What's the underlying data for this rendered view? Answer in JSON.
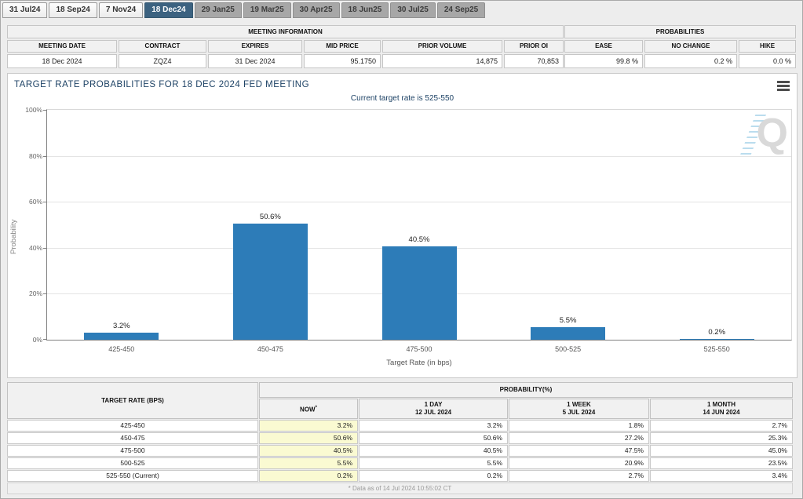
{
  "tabs": [
    {
      "label": "31 Jul24",
      "variant": "light"
    },
    {
      "label": "18 Sep24",
      "variant": "light"
    },
    {
      "label": "7 Nov24",
      "variant": "light"
    },
    {
      "label": "18 Dec24",
      "variant": "selected"
    },
    {
      "label": "29 Jan25",
      "variant": "gray"
    },
    {
      "label": "19 Mar25",
      "variant": "gray"
    },
    {
      "label": "30 Apr25",
      "variant": "gray"
    },
    {
      "label": "18 Jun25",
      "variant": "gray"
    },
    {
      "label": "30 Jul25",
      "variant": "gray"
    },
    {
      "label": "24 Sep25",
      "variant": "gray"
    }
  ],
  "meeting_info": {
    "title": "MEETING INFORMATION",
    "columns": [
      {
        "label": "MEETING DATE",
        "value": "18 Dec 2024",
        "align": "center"
      },
      {
        "label": "CONTRACT",
        "value": "ZQZ4",
        "align": "center"
      },
      {
        "label": "EXPIRES",
        "value": "31 Dec 2024",
        "align": "center"
      },
      {
        "label": "MID PRICE",
        "value": "95.1750",
        "align": "right"
      },
      {
        "label": "PRIOR VOLUME",
        "value": "14,875",
        "align": "right"
      },
      {
        "label": "PRIOR OI",
        "value": "70,853",
        "align": "right"
      }
    ]
  },
  "probabilities": {
    "title": "PROBABILITIES",
    "columns": [
      {
        "label": "EASE",
        "value": "99.8 %",
        "align": "right"
      },
      {
        "label": "NO CHANGE",
        "value": "0.2 %",
        "align": "right"
      },
      {
        "label": "HIKE",
        "value": "0.0 %",
        "align": "right"
      }
    ]
  },
  "chart_data": {
    "type": "bar",
    "title": "TARGET RATE PROBABILITIES FOR 18 DEC 2024 FED MEETING",
    "subtitle": "Current target rate is 525-550",
    "categories": [
      "425-450",
      "450-475",
      "475-500",
      "500-525",
      "525-550"
    ],
    "values": [
      3.2,
      50.6,
      40.5,
      5.5,
      0.2
    ],
    "bar_labels": [
      "3.2%",
      "50.6%",
      "40.5%",
      "5.5%",
      "0.2%"
    ],
    "xlabel": "Target Rate (in bps)",
    "ylabel": "Probability",
    "ylim": [
      0,
      100
    ],
    "ytick_values": [
      0,
      20,
      40,
      60,
      80,
      100
    ],
    "ytick_labels": [
      "0%",
      "20%",
      "40%",
      "60%",
      "80%",
      "100%"
    ],
    "bar_color": "#2d7cb8",
    "grid": true,
    "legend": false
  },
  "prob_table": {
    "col1_header": "TARGET RATE (BPS)",
    "group_header": "PROBABILITY(%)",
    "columns": [
      {
        "line1": "NOW",
        "sup": "*",
        "line2": ""
      },
      {
        "line1": "1 DAY",
        "line2": "12 JUL 2024"
      },
      {
        "line1": "1 WEEK",
        "line2": "5 JUL 2024"
      },
      {
        "line1": "1 MONTH",
        "line2": "14 JUN 2024"
      }
    ],
    "rows": [
      {
        "label": "425-450",
        "values": [
          "3.2%",
          "3.2%",
          "1.8%",
          "2.7%"
        ]
      },
      {
        "label": "450-475",
        "values": [
          "50.6%",
          "50.6%",
          "27.2%",
          "25.3%"
        ]
      },
      {
        "label": "475-500",
        "values": [
          "40.5%",
          "40.5%",
          "47.5%",
          "45.0%"
        ]
      },
      {
        "label": "500-525",
        "values": [
          "5.5%",
          "5.5%",
          "20.9%",
          "23.5%"
        ]
      },
      {
        "label": "525-550 (Current)",
        "values": [
          "0.2%",
          "0.2%",
          "2.7%",
          "3.4%"
        ]
      }
    ],
    "footnote": "* Data as of 14 Jul 2024 10:55:02 CT"
  },
  "colors": {
    "bar": "#2d7cb8",
    "selected_tab": "#3c6280",
    "navy_text": "#1d4265",
    "now_column_bg": "#fafad2"
  }
}
